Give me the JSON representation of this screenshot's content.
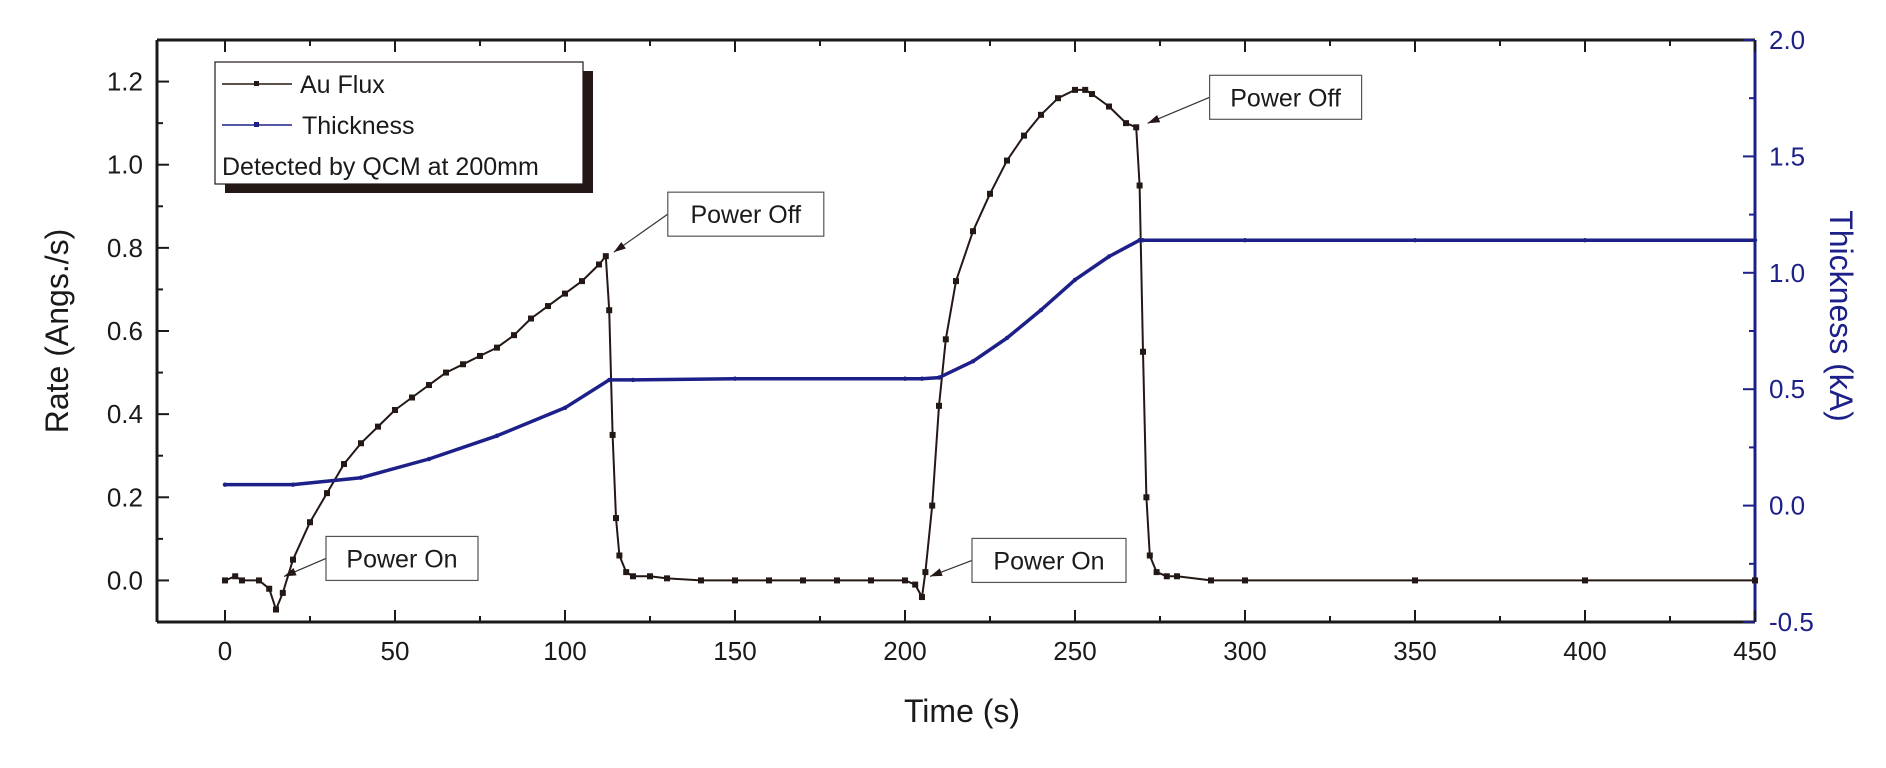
{
  "chart_data": {
    "type": "line",
    "xlabel": "Time (s)",
    "ylabel_left": "Rate (Angs./s)",
    "ylabel_right": "Thickness (kA)",
    "xlim": [
      -20,
      450
    ],
    "ylim_left": [
      -0.1,
      1.3
    ],
    "ylim_right": [
      -0.5,
      2.0
    ],
    "x_ticks": [
      0,
      50,
      100,
      150,
      200,
      250,
      300,
      350,
      400,
      450
    ],
    "y_ticks_left": [
      "0.0",
      "0.2",
      "0.4",
      "0.6",
      "0.8",
      "1.0",
      "1.2"
    ],
    "y_ticks_right": [
      "-0.5",
      "0.0",
      "0.5",
      "1.0",
      "1.5",
      "2.0"
    ],
    "grid": false,
    "legend": {
      "placement": "top-left",
      "entries": [
        "Au Flux",
        "Thickness"
      ],
      "note": "Detected by QCM at 200mm"
    },
    "colors": {
      "au_flux": "#231815",
      "thickness": "#1d2088",
      "axis": "#1a1a1a"
    },
    "series": [
      {
        "name": "Au Flux",
        "axis": "left",
        "x": [
          0,
          3,
          5,
          10,
          13,
          15,
          17,
          20,
          25,
          30,
          35,
          40,
          45,
          50,
          55,
          60,
          65,
          70,
          75,
          80,
          85,
          90,
          95,
          100,
          105,
          110,
          112,
          113,
          114,
          115,
          116,
          118,
          120,
          125,
          130,
          140,
          150,
          160,
          170,
          180,
          190,
          200,
          203,
          205,
          206,
          208,
          210,
          212,
          215,
          220,
          225,
          230,
          235,
          240,
          245,
          250,
          253,
          255,
          260,
          265,
          268,
          269,
          270,
          271,
          272,
          274,
          277,
          280,
          290,
          300,
          350,
          400,
          450
        ],
        "y": [
          0.0,
          0.01,
          0.0,
          0.0,
          -0.02,
          -0.07,
          -0.03,
          0.05,
          0.14,
          0.21,
          0.28,
          0.33,
          0.37,
          0.41,
          0.44,
          0.47,
          0.5,
          0.52,
          0.54,
          0.56,
          0.59,
          0.63,
          0.66,
          0.69,
          0.72,
          0.76,
          0.78,
          0.65,
          0.35,
          0.15,
          0.06,
          0.02,
          0.01,
          0.01,
          0.005,
          0.0,
          0.0,
          0.0,
          0.0,
          0.0,
          0.0,
          0.0,
          -0.01,
          -0.04,
          0.02,
          0.18,
          0.42,
          0.58,
          0.72,
          0.84,
          0.93,
          1.01,
          1.07,
          1.12,
          1.16,
          1.18,
          1.18,
          1.17,
          1.14,
          1.1,
          1.09,
          0.95,
          0.55,
          0.2,
          0.06,
          0.02,
          0.01,
          0.01,
          0.0,
          0.0,
          0.0,
          0.0,
          0.0
        ]
      },
      {
        "name": "Thickness",
        "axis": "right",
        "x": [
          0,
          20,
          40,
          60,
          80,
          100,
          113,
          120,
          150,
          200,
          205,
          210,
          220,
          230,
          240,
          250,
          260,
          269,
          270,
          300,
          350,
          400,
          450
        ],
        "y": [
          0.09,
          0.09,
          0.12,
          0.2,
          0.3,
          0.42,
          0.54,
          0.54,
          0.545,
          0.545,
          0.545,
          0.55,
          0.62,
          0.72,
          0.84,
          0.97,
          1.07,
          1.14,
          1.14,
          1.14,
          1.14,
          1.14,
          1.14
        ]
      }
    ],
    "annotations": [
      {
        "text": "Power On",
        "x": 15,
        "y": 0.0
      },
      {
        "text": "Power Off",
        "x": 112,
        "y": 0.78
      },
      {
        "text": "Power On",
        "x": 205,
        "y": 0.0
      },
      {
        "text": "Power Off",
        "x": 269,
        "y": 1.09
      }
    ]
  }
}
